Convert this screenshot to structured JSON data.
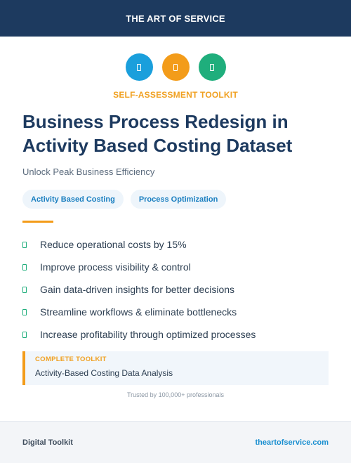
{
  "header": {
    "brand": "THE ART OF SERVICE"
  },
  "icons": [
    {
      "name": "document-icon",
      "color": "#1a9fdc"
    },
    {
      "name": "document-icon",
      "color": "#f39c1a"
    },
    {
      "name": "document-icon",
      "color": "#1fae7c"
    }
  ],
  "kicker": "SELF-ASSESSMENT TOOLKIT",
  "title": "Business Process Redesign in Activity Based Costing Dataset",
  "subtitle": "Unlock Peak Business Efficiency",
  "tags": [
    "Activity Based Costing",
    "Process Optimization"
  ],
  "benefits": [
    "Reduce operational costs by 15%",
    "Improve process visibility & control",
    "Gain data-driven insights for better decisions",
    "Streamline workflows & eliminate bottlenecks",
    "Increase profitability through optimized processes"
  ],
  "callout": {
    "label": "COMPLETE TOOLKIT",
    "text": "Activity-Based Costing Data Analysis"
  },
  "trusted": "Trusted by 100,000+ professionals",
  "footer": {
    "left": "Digital Toolkit",
    "right": "theartofservice.com"
  },
  "colors": {
    "header_bg": "#1d3a5f",
    "accent_orange": "#f39c1a",
    "accent_blue": "#1a9fdc",
    "accent_green": "#1fae7c"
  }
}
